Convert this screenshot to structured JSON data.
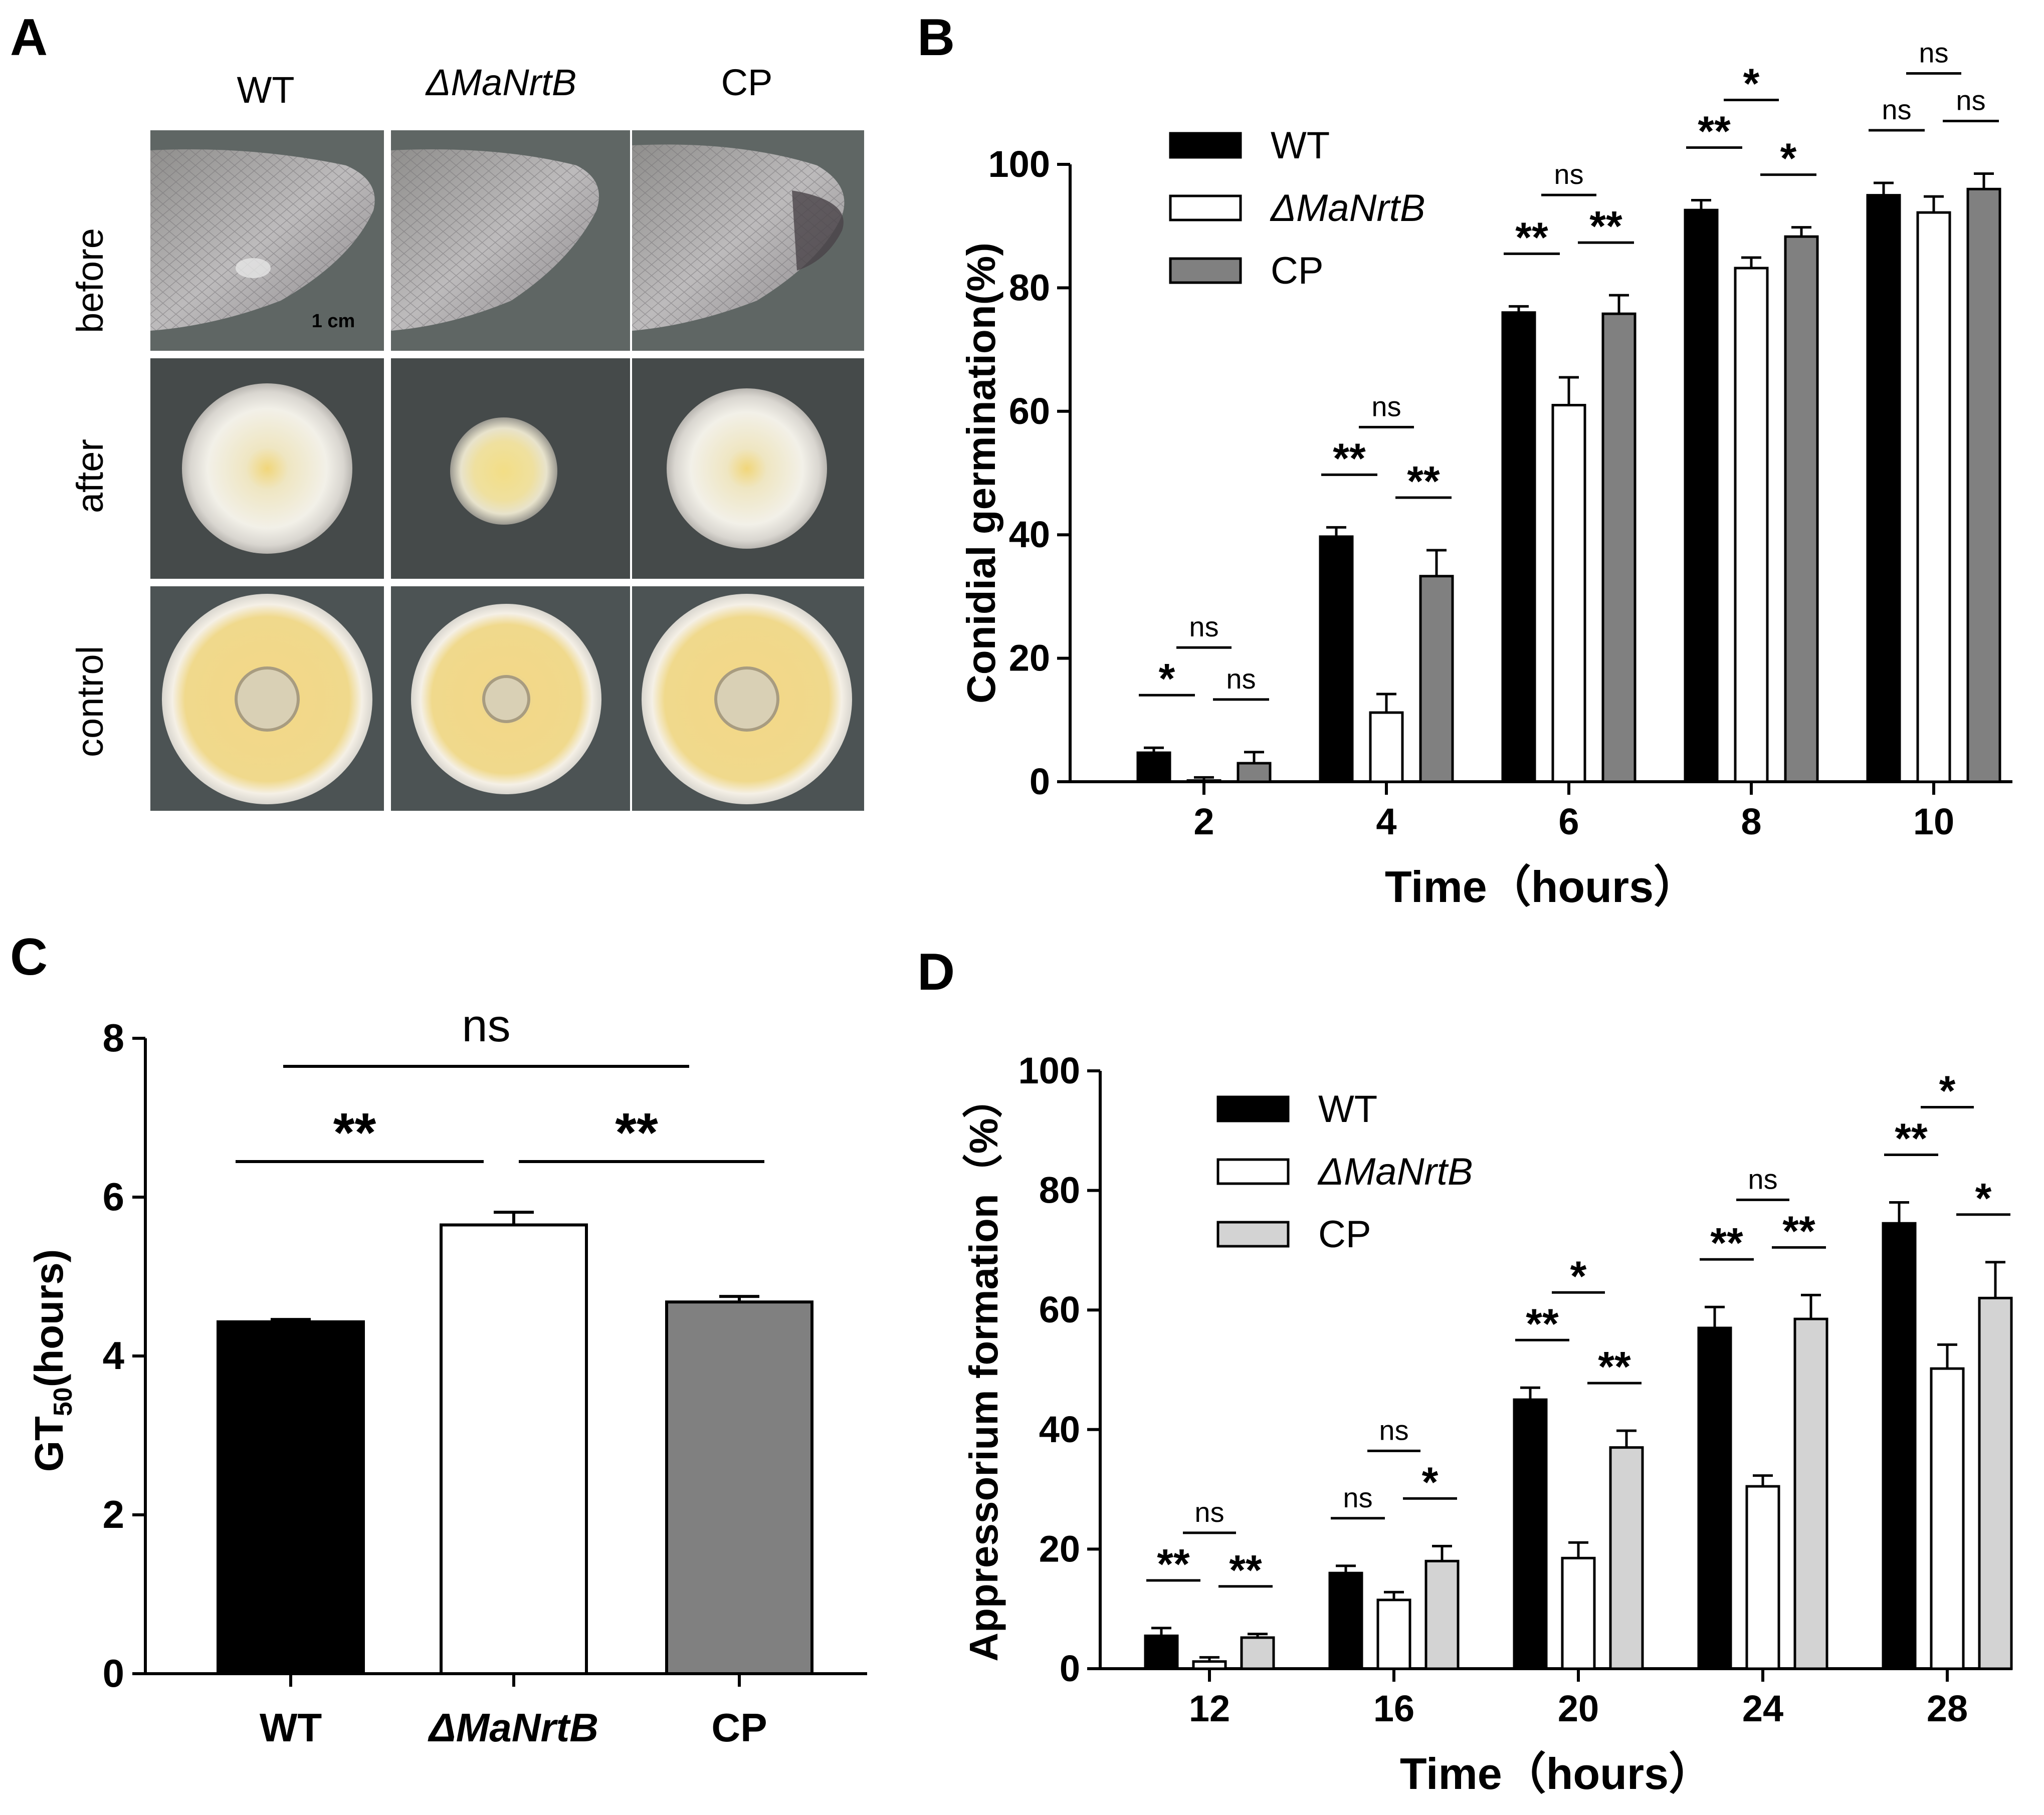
{
  "panels": {
    "A": {
      "letter": "A",
      "columns": [
        "WT",
        "ΔMaNrtB",
        "CP"
      ],
      "rows": [
        "before",
        "after",
        "control"
      ],
      "scale_bar": "1 cm"
    },
    "B": {
      "letter": "B"
    },
    "C": {
      "letter": "C"
    },
    "D": {
      "letter": "D"
    }
  },
  "colors": {
    "WT": "#000000",
    "ΔMaNrtB": "#ffffff",
    "CP_B": "#808080",
    "CP_C": "#808080",
    "CP_D": "#d3d3d3",
    "photo_bg": "#5c6260",
    "colony_yellow": "#eed98c"
  },
  "chart_data": [
    {
      "id": "B",
      "type": "bar",
      "title": "",
      "xlabel": "Time（hours）",
      "ylabel": "Conidial germination(%)",
      "ylim": [
        0,
        100
      ],
      "yticks": [
        0,
        20,
        40,
        60,
        80,
        100
      ],
      "categories": [
        "2",
        "4",
        "6",
        "8",
        "10"
      ],
      "series": [
        {
          "name": "WT",
          "values": [
            4.7,
            39.7,
            76,
            92.6,
            95
          ],
          "errors": [
            0.8,
            1.5,
            1,
            1.6,
            2
          ]
        },
        {
          "name": "ΔMaNrtB",
          "values": [
            0.2,
            11.2,
            61,
            83.2,
            92.2
          ],
          "errors": [
            0.5,
            3,
            4.5,
            1.7,
            2.6
          ]
        },
        {
          "name": "CP",
          "values": [
            3,
            33.3,
            75.8,
            88.3,
            96
          ],
          "errors": [
            1.8,
            4.2,
            3,
            1.5,
            2.5
          ]
        }
      ],
      "legend": [
        "WT",
        "ΔMaNrtB",
        "CP"
      ],
      "legend_position": "top-left",
      "significance": [
        {
          "cat": 0,
          "pair": "wt-mut",
          "label": "*"
        },
        {
          "cat": 0,
          "pair": "mut-cp",
          "label": "ns"
        },
        {
          "cat": 0,
          "pair": "wt-cp",
          "label": "ns"
        },
        {
          "cat": 1,
          "pair": "wt-mut",
          "label": "**"
        },
        {
          "cat": 1,
          "pair": "mut-cp",
          "label": "**"
        },
        {
          "cat": 1,
          "pair": "wt-cp",
          "label": "ns"
        },
        {
          "cat": 2,
          "pair": "wt-mut",
          "label": "**"
        },
        {
          "cat": 2,
          "pair": "mut-cp",
          "label": "**"
        },
        {
          "cat": 2,
          "pair": "wt-cp",
          "label": "ns"
        },
        {
          "cat": 3,
          "pair": "wt-mut",
          "label": "**"
        },
        {
          "cat": 3,
          "pair": "mut-cp",
          "label": "*"
        },
        {
          "cat": 3,
          "pair": "wt-cp",
          "label": "*"
        },
        {
          "cat": 4,
          "pair": "wt-mut",
          "label": "ns"
        },
        {
          "cat": 4,
          "pair": "mut-cp",
          "label": "ns"
        },
        {
          "cat": 4,
          "pair": "wt-cp",
          "label": "ns"
        }
      ]
    },
    {
      "id": "C",
      "type": "bar",
      "title": "",
      "xlabel": "",
      "ylabel_main": "GT",
      "ylabel_sub": "50",
      "ylabel_rest": "(hours)",
      "ylim": [
        0,
        8
      ],
      "yticks": [
        0,
        2,
        4,
        6,
        8
      ],
      "categories": [
        "WT",
        "ΔMaNrtB",
        "CP"
      ],
      "values": [
        4.43,
        5.65,
        4.68
      ],
      "errors": [
        0.03,
        0.16,
        0.07
      ],
      "significance": [
        {
          "pair": "wt-mut",
          "label": "**"
        },
        {
          "pair": "mut-cp",
          "label": "**"
        },
        {
          "pair": "wt-cp",
          "label": "ns"
        }
      ]
    },
    {
      "id": "D",
      "type": "bar",
      "title": "",
      "xlabel": "Time（hours）",
      "ylabel": "Appressorium formation（%）",
      "ylim": [
        0,
        100
      ],
      "yticks": [
        0,
        20,
        40,
        60,
        80,
        100
      ],
      "categories": [
        "12",
        "16",
        "20",
        "24",
        "28"
      ],
      "series": [
        {
          "name": "WT",
          "values": [
            5.5,
            16,
            45,
            57,
            74.5
          ],
          "errors": [
            1.3,
            1.2,
            2,
            3.5,
            3.5
          ]
        },
        {
          "name": "ΔMaNrtB",
          "values": [
            1.2,
            11.5,
            18.5,
            30.5,
            50.2
          ],
          "errors": [
            0.7,
            1.3,
            2.6,
            1.8,
            4
          ]
        },
        {
          "name": "CP",
          "values": [
            5.2,
            18,
            37,
            58.5,
            62
          ],
          "errors": [
            0.6,
            2.5,
            2.8,
            4,
            6
          ]
        }
      ],
      "legend": [
        "WT",
        "ΔMaNrtB",
        "CP"
      ],
      "legend_position": "top-left",
      "significance": [
        {
          "cat": 0,
          "pair": "wt-mut",
          "label": "**"
        },
        {
          "cat": 0,
          "pair": "mut-cp",
          "label": "**"
        },
        {
          "cat": 0,
          "pair": "wt-cp",
          "label": "ns"
        },
        {
          "cat": 1,
          "pair": "wt-mut",
          "label": "ns"
        },
        {
          "cat": 1,
          "pair": "mut-cp",
          "label": "*"
        },
        {
          "cat": 1,
          "pair": "wt-cp",
          "label": "ns"
        },
        {
          "cat": 2,
          "pair": "wt-mut",
          "label": "**"
        },
        {
          "cat": 2,
          "pair": "mut-cp",
          "label": "**"
        },
        {
          "cat": 2,
          "pair": "wt-cp",
          "label": "*"
        },
        {
          "cat": 3,
          "pair": "wt-mut",
          "label": "**"
        },
        {
          "cat": 3,
          "pair": "mut-cp",
          "label": "**"
        },
        {
          "cat": 3,
          "pair": "wt-cp",
          "label": "ns"
        },
        {
          "cat": 4,
          "pair": "wt-mut",
          "label": "**"
        },
        {
          "cat": 4,
          "pair": "mut-cp",
          "label": "*"
        },
        {
          "cat": 4,
          "pair": "wt-cp",
          "label": "*"
        }
      ]
    }
  ]
}
